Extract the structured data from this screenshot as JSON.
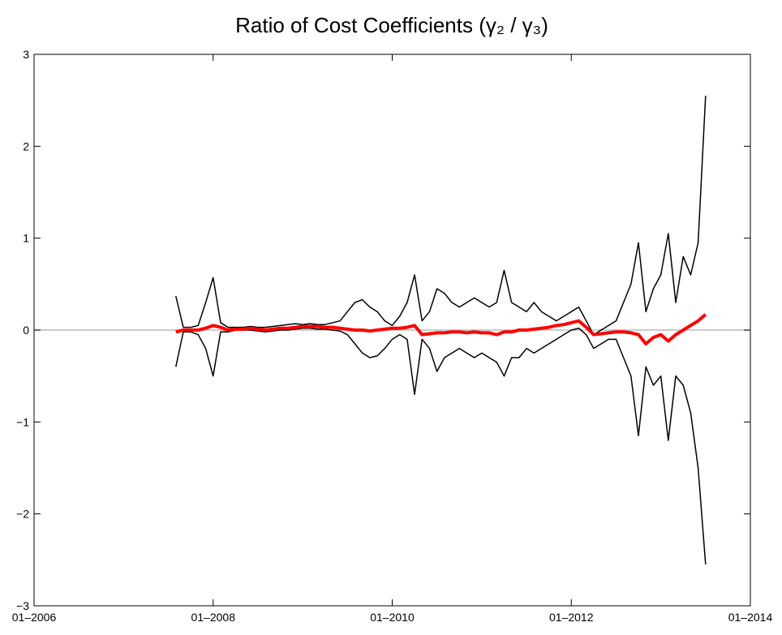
{
  "chart_data": {
    "type": "line",
    "title": "Ratio of Cost Coefficients (γ₂ / γ₃)",
    "x": [
      "2007-08",
      "2007-09",
      "2007-10",
      "2007-11",
      "2007-12",
      "2008-01",
      "2008-02",
      "2008-03",
      "2008-04",
      "2008-05",
      "2008-06",
      "2008-07",
      "2008-08",
      "2008-09",
      "2008-10",
      "2008-11",
      "2008-12",
      "2009-01",
      "2009-02",
      "2009-03",
      "2009-04",
      "2009-05",
      "2009-06",
      "2009-07",
      "2009-08",
      "2009-09",
      "2009-10",
      "2009-11",
      "2009-12",
      "2010-01",
      "2010-02",
      "2010-03",
      "2010-04",
      "2010-05",
      "2010-06",
      "2010-07",
      "2010-08",
      "2010-09",
      "2010-10",
      "2010-11",
      "2010-12",
      "2011-01",
      "2011-02",
      "2011-03",
      "2011-04",
      "2011-05",
      "2011-06",
      "2011-07",
      "2011-08",
      "2011-09",
      "2011-10",
      "2011-11",
      "2011-12",
      "2012-01",
      "2012-02",
      "2012-03",
      "2012-04",
      "2012-05",
      "2012-06",
      "2012-07",
      "2012-08",
      "2012-09",
      "2012-10",
      "2012-11",
      "2012-12",
      "2013-01",
      "2013-02",
      "2013-03",
      "2013-04",
      "2013-05",
      "2013-06",
      "2013-07"
    ],
    "series": [
      {
        "color": "#000000",
        "width": 1.5,
        "values": [
          0.37,
          0.03,
          0.03,
          0.05,
          0.3,
          0.57,
          0.08,
          0.03,
          0.03,
          0.03,
          0.04,
          0.03,
          0.03,
          0.04,
          0.05,
          0.06,
          0.07,
          0.06,
          0.07,
          0.06,
          0.06,
          0.08,
          0.1,
          0.2,
          0.3,
          0.33,
          0.25,
          0.2,
          0.1,
          0.05,
          0.15,
          0.3,
          0.6,
          0.1,
          0.2,
          0.45,
          0.4,
          0.3,
          0.25,
          0.3,
          0.35,
          0.3,
          0.25,
          0.3,
          0.65,
          0.3,
          0.25,
          0.2,
          0.3,
          0.2,
          0.15,
          0.1,
          0.15,
          0.2,
          0.25,
          0.1,
          -0.05,
          0.0,
          0.05,
          0.1,
          0.3,
          0.5,
          0.95,
          0.2,
          0.45,
          0.6,
          1.05,
          0.3,
          0.8,
          0.6,
          0.95,
          2.55
        ]
      },
      {
        "color": "#000000",
        "width": 1.5,
        "values": [
          -0.4,
          -0.02,
          -0.02,
          -0.05,
          -0.2,
          -0.5,
          -0.02,
          -0.02,
          0,
          0,
          0,
          -0.01,
          -0.02,
          -0.01,
          0,
          0,
          0.01,
          0.02,
          0.02,
          0.01,
          0.01,
          0,
          -0.01,
          -0.05,
          -0.15,
          -0.25,
          -0.3,
          -0.28,
          -0.2,
          -0.1,
          -0.05,
          -0.1,
          -0.7,
          -0.1,
          -0.2,
          -0.45,
          -0.3,
          -0.25,
          -0.2,
          -0.25,
          -0.3,
          -0.25,
          -0.3,
          -0.35,
          -0.5,
          -0.3,
          -0.3,
          -0.2,
          -0.25,
          -0.2,
          -0.15,
          -0.1,
          -0.05,
          0,
          0.02,
          -0.05,
          -0.2,
          -0.15,
          -0.1,
          -0.1,
          -0.3,
          -0.5,
          -1.15,
          -0.4,
          -0.6,
          -0.5,
          -1.2,
          -0.5,
          -0.6,
          -0.9,
          -1.5,
          -2.55
        ]
      },
      {
        "color": "#ff0000",
        "width": 4,
        "values": [
          -0.02,
          0,
          0,
          0,
          0.02,
          0.05,
          0.03,
          0,
          0.01,
          0.01,
          0.02,
          0.01,
          0,
          0.01,
          0.02,
          0.02,
          0.03,
          0.04,
          0.04,
          0.04,
          0.03,
          0.03,
          0.02,
          0.01,
          0,
          0,
          -0.01,
          0,
          0.01,
          0.02,
          0.02,
          0.03,
          0.05,
          -0.05,
          -0.04,
          -0.03,
          -0.03,
          -0.02,
          -0.02,
          -0.03,
          -0.02,
          -0.03,
          -0.03,
          -0.05,
          -0.02,
          -0.02,
          0,
          0,
          0.01,
          0.02,
          0.03,
          0.05,
          0.06,
          0.08,
          0.1,
          0.03,
          -0.05,
          -0.04,
          -0.03,
          -0.02,
          -0.02,
          -0.03,
          -0.05,
          -0.15,
          -0.08,
          -0.05,
          -0.12,
          -0.05,
          0,
          0.05,
          0.1,
          0.17
        ]
      }
    ],
    "xlim": [
      "2006-01",
      "2014-01"
    ],
    "xticks": [
      {
        "value": "2006-01",
        "label": "01–2006"
      },
      {
        "value": "2008-01",
        "label": "01–2008"
      },
      {
        "value": "2010-01",
        "label": "01–2010"
      },
      {
        "value": "2012-01",
        "label": "01–2012"
      },
      {
        "value": "2014-01",
        "label": "01–2014"
      }
    ],
    "ylim": [
      -3,
      3
    ],
    "yticks": [
      {
        "value": -3,
        "label": "−3"
      },
      {
        "value": -2,
        "label": "−2"
      },
      {
        "value": -1,
        "label": "−1"
      },
      0,
      1,
      2,
      3
    ],
    "zero_line": true,
    "zero_line_color": "#bbbbbb"
  }
}
